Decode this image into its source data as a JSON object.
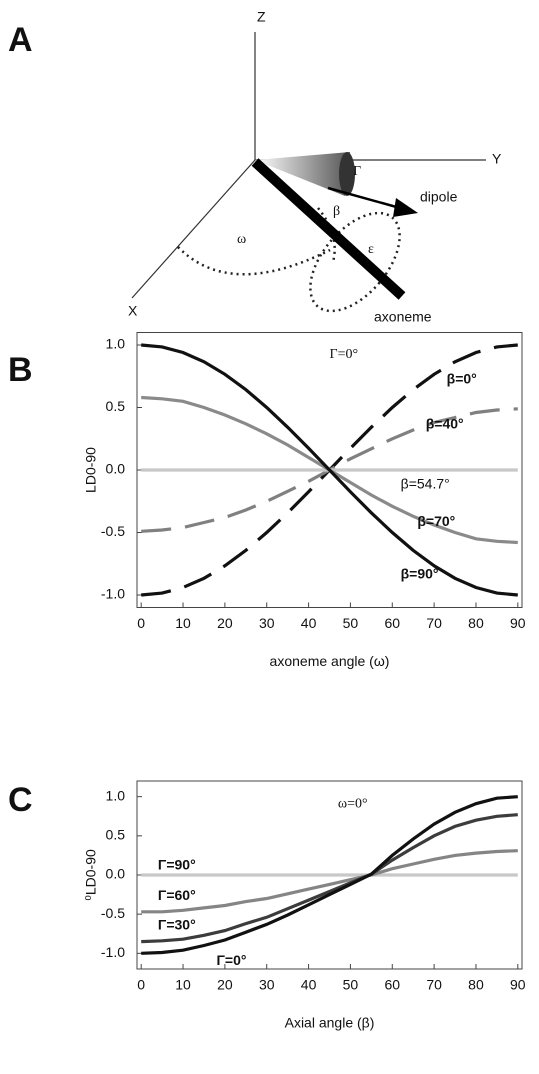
{
  "diagram": {
    "panel": "A",
    "labels": {
      "z": "Z",
      "y": "Y",
      "x": "X",
      "gamma": "Γ",
      "beta": "β",
      "omega": "ω",
      "epsilon": "ε",
      "dipole": "dipole",
      "axoneme": "axoneme"
    }
  },
  "chart_data": [
    {
      "panel": "B",
      "type": "line",
      "annotation": "Γ=0°",
      "xlabel": "axoneme angle (ω)",
      "ylabel": "LD0-90",
      "x": [
        0,
        5,
        10,
        15,
        20,
        25,
        30,
        35,
        40,
        45,
        50,
        55,
        60,
        65,
        70,
        75,
        80,
        85,
        90
      ],
      "series": [
        {
          "name": "β=0°",
          "color": "#111111",
          "dashed": true,
          "values": [
            -1,
            -0.985,
            -0.94,
            -0.866,
            -0.766,
            -0.643,
            -0.5,
            -0.342,
            -0.174,
            0,
            0.174,
            0.342,
            0.5,
            0.643,
            0.766,
            0.866,
            0.94,
            0.985,
            1
          ]
        },
        {
          "name": "β=40°",
          "color": "#808080",
          "dashed": true,
          "values": [
            -0.49,
            -0.48,
            -0.46,
            -0.42,
            -0.38,
            -0.32,
            -0.25,
            -0.17,
            -0.09,
            0,
            0.09,
            0.17,
            0.25,
            0.32,
            0.38,
            0.42,
            0.46,
            0.48,
            0.49
          ]
        },
        {
          "name": "β=54.7°",
          "color": "#c8c8c8",
          "dashed": false,
          "values": [
            0,
            0,
            0,
            0,
            0,
            0,
            0,
            0,
            0,
            0,
            0,
            0,
            0,
            0,
            0,
            0,
            0,
            0,
            0
          ]
        },
        {
          "name": "β=70°",
          "color": "#8a8a8a",
          "dashed": false,
          "values": [
            0.58,
            0.57,
            0.55,
            0.5,
            0.44,
            0.37,
            0.29,
            0.2,
            0.1,
            0,
            -0.1,
            -0.2,
            -0.29,
            -0.37,
            -0.44,
            -0.5,
            -0.55,
            -0.57,
            -0.58
          ]
        },
        {
          "name": "β=90°",
          "color": "#111111",
          "dashed": false,
          "values": [
            1,
            0.985,
            0.94,
            0.866,
            0.766,
            0.643,
            0.5,
            0.342,
            0.174,
            0,
            -0.174,
            -0.342,
            -0.5,
            -0.643,
            -0.766,
            -0.866,
            -0.94,
            -0.985,
            -1
          ]
        }
      ],
      "xlim": [
        -1,
        91
      ],
      "ylim": [
        -1.1,
        1.1
      ],
      "xticks": [
        0,
        10,
        20,
        30,
        40,
        50,
        60,
        70,
        80,
        90
      ],
      "yticks": [
        {
          "value": 1,
          "label": "1.0"
        },
        {
          "value": 0.5,
          "label": "0.5"
        },
        {
          "value": 0,
          "label": "0.0"
        },
        {
          "value": -0.5,
          "label": "-0.5"
        },
        {
          "value": -1,
          "label": "-1.0"
        }
      ]
    },
    {
      "panel": "C",
      "type": "line",
      "annotation": "ω=0°",
      "xlabel": "Axial angle (β)",
      "ylabel": "⁰LD0-90",
      "x": [
        0,
        5,
        10,
        15,
        20,
        25,
        30,
        35,
        40,
        45,
        50,
        55,
        60,
        65,
        70,
        75,
        80,
        85,
        90
      ],
      "series": [
        {
          "name": "Γ=90°",
          "color": "#c8c8c8",
          "dashed": false,
          "values": [
            0,
            0,
            0,
            0,
            0,
            0,
            0,
            0,
            0,
            0,
            0,
            0,
            0,
            0,
            0,
            0,
            0,
            0,
            0
          ]
        },
        {
          "name": "Γ=60°",
          "color": "#858585",
          "dashed": false,
          "values": [
            -0.47,
            -0.47,
            -0.45,
            -0.42,
            -0.39,
            -0.34,
            -0.3,
            -0.24,
            -0.18,
            -0.12,
            -0.06,
            0,
            0.08,
            0.14,
            0.2,
            0.25,
            0.28,
            0.3,
            0.31
          ]
        },
        {
          "name": "Γ=30°",
          "color": "#3c3c3c",
          "dashed": false,
          "values": [
            -0.85,
            -0.84,
            -0.82,
            -0.77,
            -0.71,
            -0.62,
            -0.54,
            -0.43,
            -0.32,
            -0.21,
            -0.1,
            0.01,
            0.19,
            0.35,
            0.5,
            0.62,
            0.7,
            0.75,
            0.77
          ]
        },
        {
          "name": "Γ=0°",
          "color": "#111111",
          "dashed": false,
          "values": [
            -1,
            -0.99,
            -0.96,
            -0.9,
            -0.83,
            -0.73,
            -0.63,
            -0.51,
            -0.38,
            -0.25,
            -0.12,
            0.01,
            0.25,
            0.46,
            0.65,
            0.8,
            0.91,
            0.98,
            1
          ]
        }
      ],
      "xlim": [
        -1,
        91
      ],
      "ylim": [
        -1.2,
        1.2
      ],
      "xticks": [
        0,
        10,
        20,
        30,
        40,
        50,
        60,
        70,
        80,
        90
      ],
      "yticks": [
        {
          "value": 1,
          "label": "1.0"
        },
        {
          "value": 0.5,
          "label": "0.5"
        },
        {
          "value": 0,
          "label": "0.0"
        },
        {
          "value": -0.5,
          "label": "-0.5"
        },
        {
          "value": -1,
          "label": "-1.0"
        }
      ]
    }
  ]
}
